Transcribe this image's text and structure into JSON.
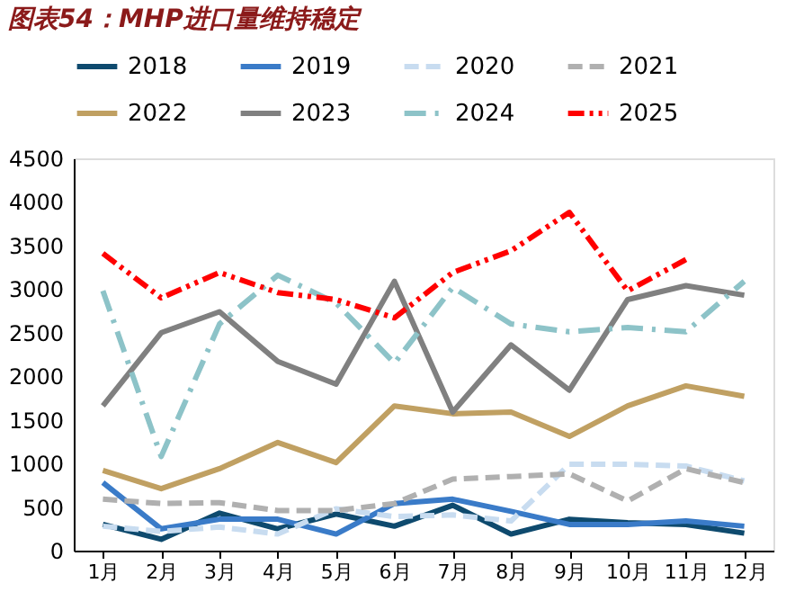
{
  "chart_data": {
    "type": "line",
    "title": "图表54：MHP进口量维持稳定",
    "categories": [
      "1月",
      "2月",
      "3月",
      "4月",
      "5月",
      "6月",
      "7月",
      "8月",
      "9月",
      "10月",
      "11月",
      "12月"
    ],
    "ylim": [
      0,
      4500
    ],
    "yticks": [
      0,
      500,
      1000,
      1500,
      2000,
      2500,
      3000,
      3500,
      4000,
      4500
    ],
    "grid": false,
    "legend": "top",
    "marker": "none",
    "series": [
      {
        "name": "2018",
        "color": "#0e4a6e",
        "line_style": "solid",
        "values": [
          300,
          130,
          430,
          250,
          420,
          280,
          520,
          190,
          360,
          320,
          300,
          200
        ]
      },
      {
        "name": "2019",
        "color": "#3a7bc8",
        "line_style": "solid",
        "values": [
          780,
          250,
          360,
          360,
          190,
          540,
          590,
          450,
          300,
          300,
          340,
          280
        ]
      },
      {
        "name": "2020",
        "color": "#c8dcf0",
        "line_style": "dashed",
        "values": [
          280,
          220,
          270,
          190,
          480,
          390,
          410,
          340,
          990,
          990,
          970,
          800
        ]
      },
      {
        "name": "2021",
        "color": "#b0b0b0",
        "line_style": "dashed",
        "values": [
          590,
          540,
          550,
          460,
          460,
          540,
          820,
          850,
          880,
          570,
          940,
          780
        ]
      },
      {
        "name": "2022",
        "color": "#c0a062",
        "line_style": "solid",
        "values": [
          920,
          710,
          940,
          1240,
          1010,
          1660,
          1570,
          1590,
          1310,
          1660,
          1890,
          1770
        ]
      },
      {
        "name": "2023",
        "color": "#808080",
        "line_style": "solid",
        "values": [
          1660,
          2500,
          2740,
          2170,
          1910,
          3090,
          1590,
          2360,
          1840,
          2880,
          3040,
          2930
        ]
      },
      {
        "name": "2024",
        "color": "#8dc3c8",
        "line_style": "dashdot",
        "values": [
          2980,
          1080,
          2600,
          3160,
          2840,
          2150,
          3020,
          2600,
          2510,
          2560,
          2510,
          3090
        ]
      },
      {
        "name": "2025",
        "color": "#ff0000",
        "line_style": "dashdotdot",
        "values": [
          3410,
          2900,
          3190,
          2960,
          2880,
          2670,
          3190,
          3440,
          3880,
          2980,
          3340,
          null
        ]
      }
    ]
  }
}
